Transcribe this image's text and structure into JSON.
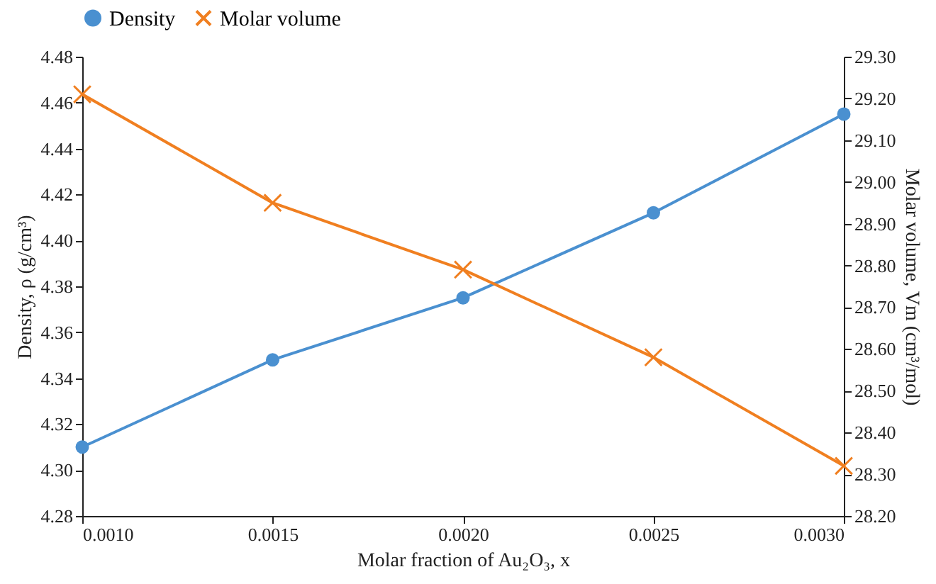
{
  "chart_data": {
    "type": "line",
    "xlabel": "Molar fraction of Au₂O₃, x",
    "ylabel": "Density, ρ (g/cm³)",
    "y2label": "Molar volume, Vm (cm³/mol)",
    "x": [
      0.001,
      0.0015,
      0.002,
      0.0025,
      0.003
    ],
    "series": [
      {
        "name": "Density",
        "color": "#4a90d0",
        "marker": "circle",
        "values": [
          4.31,
          4.348,
          4.375,
          4.412,
          4.455
        ]
      },
      {
        "name": "Molar volume",
        "color": "#f07f20",
        "marker": "cross",
        "axis": "y2",
        "values": [
          29.21,
          28.95,
          28.79,
          28.58,
          28.32
        ]
      }
    ],
    "xlim": [
      0.001,
      0.003
    ],
    "xticks": [
      {
        "value": 0.001,
        "label": "0.0010"
      },
      {
        "value": 0.0015,
        "label": "0.0015"
      },
      {
        "value": 0.002,
        "label": "0.0020"
      },
      {
        "value": 0.0025,
        "label": "0.0025"
      },
      {
        "value": 0.003,
        "label": "0.0030"
      }
    ],
    "ylim": [
      4.28,
      4.48
    ],
    "yticks": [
      {
        "value": 4.28,
        "label": "4.28"
      },
      {
        "value": 4.3,
        "label": "4.30"
      },
      {
        "value": 4.32,
        "label": "4.32"
      },
      {
        "value": 4.34,
        "label": "4.34"
      },
      {
        "value": 4.36,
        "label": "4.36"
      },
      {
        "value": 4.38,
        "label": "4.38"
      },
      {
        "value": 4.4,
        "label": "4.40"
      },
      {
        "value": 4.42,
        "label": "4.42"
      },
      {
        "value": 4.44,
        "label": "4.44"
      },
      {
        "value": 4.46,
        "label": "4.46"
      },
      {
        "value": 4.48,
        "label": "4.48"
      }
    ],
    "y2lim": [
      28.2,
      29.3
    ],
    "y2ticks": [
      {
        "value": 28.2,
        "label": "28.20"
      },
      {
        "value": 28.3,
        "label": "28.30"
      },
      {
        "value": 28.4,
        "label": "28.40"
      },
      {
        "value": 28.5,
        "label": "28.50"
      },
      {
        "value": 28.6,
        "label": "28.60"
      },
      {
        "value": 28.7,
        "label": "28.70"
      },
      {
        "value": 28.8,
        "label": "28.80"
      },
      {
        "value": 28.9,
        "label": "28.90"
      },
      {
        "value": 29.0,
        "label": "29.00"
      },
      {
        "value": 29.1,
        "label": "29.10"
      },
      {
        "value": 29.2,
        "label": "29.20"
      },
      {
        "value": 29.3,
        "label": "29.30"
      }
    ],
    "grid": false,
    "legend": "top",
    "line_style": "solid"
  }
}
